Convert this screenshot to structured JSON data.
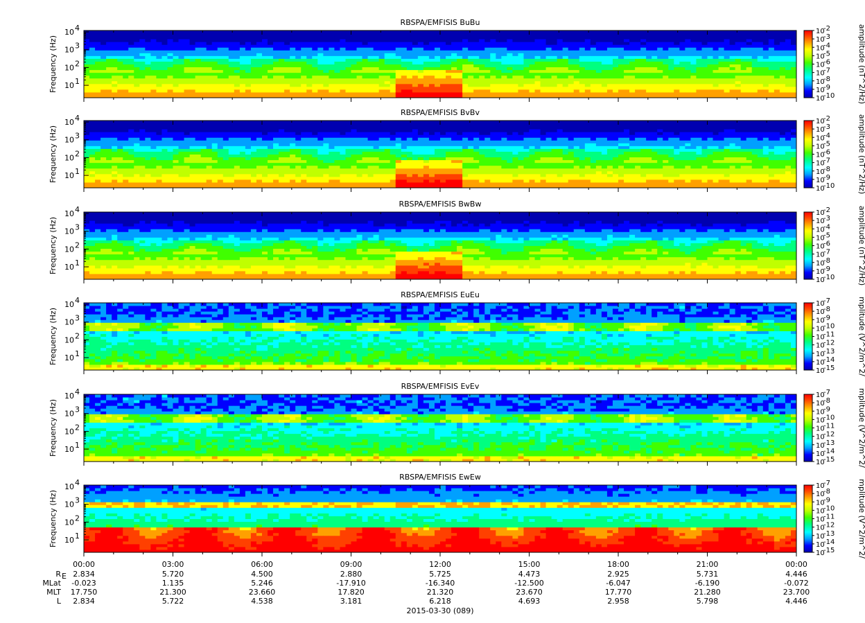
{
  "figure": {
    "date_label": "2015-03-30 (089)"
  },
  "ephemeris": {
    "labels": [
      "R",
      "MLat",
      "MLT",
      "L"
    ],
    "r_subscript": "E",
    "rows": [
      [
        "2.834",
        "5.720",
        "4.500",
        "2.880",
        "5.725",
        "4.473",
        "2.925",
        "5.731",
        "4.446"
      ],
      [
        "-0.023",
        "1.135",
        "5.246",
        "-17.910",
        "-16.340",
        "-12.500",
        "-6.047",
        "-6.190",
        "-0.072"
      ],
      [
        "17.750",
        "21.300",
        "23.660",
        "17.820",
        "21.320",
        "23.670",
        "17.770",
        "21.280",
        "23.700"
      ],
      [
        "2.834",
        "5.722",
        "4.538",
        "3.181",
        "6.218",
        "4.693",
        "2.958",
        "5.798",
        "4.446"
      ]
    ]
  },
  "chart_data": [
    {
      "type": "heatmap",
      "title": "RBSPA/EMFISIS  BuBu",
      "ylabel": "Frequency (Hz)",
      "y_scale": "log",
      "ylim": [
        2,
        12000
      ],
      "y_ticks": [
        "10",
        "10",
        "10",
        "10"
      ],
      "y_tick_exponents": [
        "1",
        "2",
        "3",
        "4"
      ],
      "x_ticks": [
        "00:00",
        "03:00",
        "06:00",
        "09:00",
        "12:00",
        "15:00",
        "18:00",
        "21:00",
        "00:00"
      ],
      "colorbar_label": "amplitude (nT^2/Hz)",
      "colorbar_exponents": [
        "-2",
        "-3",
        "-4",
        "-5",
        "-6",
        "-7",
        "-8",
        "-9",
        "-10"
      ],
      "kind": "B"
    },
    {
      "type": "heatmap",
      "title": "RBSPA/EMFISIS  BvBv",
      "ylabel": "Frequency (Hz)",
      "y_scale": "log",
      "ylim": [
        2,
        12000
      ],
      "y_ticks": [
        "10",
        "10",
        "10",
        "10"
      ],
      "y_tick_exponents": [
        "1",
        "2",
        "3",
        "4"
      ],
      "colorbar_label": "amplitude (nT^2/Hz)",
      "colorbar_exponents": [
        "-2",
        "-3",
        "-4",
        "-5",
        "-6",
        "-7",
        "-8",
        "-9",
        "-10"
      ],
      "kind": "B"
    },
    {
      "type": "heatmap",
      "title": "RBSPA/EMFISIS  BwBw",
      "ylabel": "Frequency (Hz)",
      "y_scale": "log",
      "ylim": [
        2,
        12000
      ],
      "y_ticks": [
        "10",
        "10",
        "10",
        "10"
      ],
      "y_tick_exponents": [
        "1",
        "2",
        "3",
        "4"
      ],
      "colorbar_label": "amplitude (nT^2/Hz)",
      "colorbar_exponents": [
        "-2",
        "-3",
        "-4",
        "-5",
        "-6",
        "-7",
        "-8",
        "-9",
        "-10"
      ],
      "kind": "B"
    },
    {
      "type": "heatmap",
      "title": "RBSPA/EMFISIS  EuEu",
      "ylabel": "Frequency (Hz)",
      "y_scale": "log",
      "ylim": [
        2,
        12000
      ],
      "y_ticks": [
        "10",
        "10",
        "10",
        "10"
      ],
      "y_tick_exponents": [
        "1",
        "2",
        "3",
        "4"
      ],
      "colorbar_label": "mplitude (V^2/m^2/",
      "colorbar_exponents": [
        "-7",
        "-8",
        "-9",
        "-10",
        "-11",
        "-12",
        "-13",
        "-14",
        "-15"
      ],
      "kind": "E"
    },
    {
      "type": "heatmap",
      "title": "RBSPA/EMFISIS  EvEv",
      "ylabel": "Frequency (Hz)",
      "y_scale": "log",
      "ylim": [
        2,
        12000
      ],
      "y_ticks": [
        "10",
        "10",
        "10",
        "10"
      ],
      "y_tick_exponents": [
        "1",
        "2",
        "3",
        "4"
      ],
      "colorbar_label": "mplitude (V^2/m^2/",
      "colorbar_exponents": [
        "-7",
        "-8",
        "-9",
        "-10",
        "-11",
        "-12",
        "-13",
        "-14",
        "-15"
      ],
      "kind": "E"
    },
    {
      "type": "heatmap",
      "title": "RBSPA/EMFISIS  EwEw",
      "ylabel": "Frequency (Hz)",
      "y_scale": "log",
      "ylim": [
        2,
        12000
      ],
      "y_ticks": [
        "10",
        "10",
        "10",
        "10"
      ],
      "y_tick_exponents": [
        "1",
        "2",
        "3",
        "4"
      ],
      "colorbar_label": "mplitude (V^2/m^2/",
      "colorbar_exponents": [
        "-7",
        "-8",
        "-9",
        "-10",
        "-11",
        "-12",
        "-13",
        "-14",
        "-15"
      ],
      "kind": "Ew"
    }
  ],
  "x_axis": {
    "ticks": [
      "00:00",
      "03:00",
      "06:00",
      "09:00",
      "12:00",
      "15:00",
      "18:00",
      "21:00",
      "00:00"
    ]
  },
  "colors": {
    "colormap": [
      "#0000b0",
      "#0000ff",
      "#00a0ff",
      "#00ffff",
      "#00ff80",
      "#40ff00",
      "#c0ff00",
      "#ffff00",
      "#ffa000",
      "#ff4000",
      "#ff0000"
    ]
  }
}
